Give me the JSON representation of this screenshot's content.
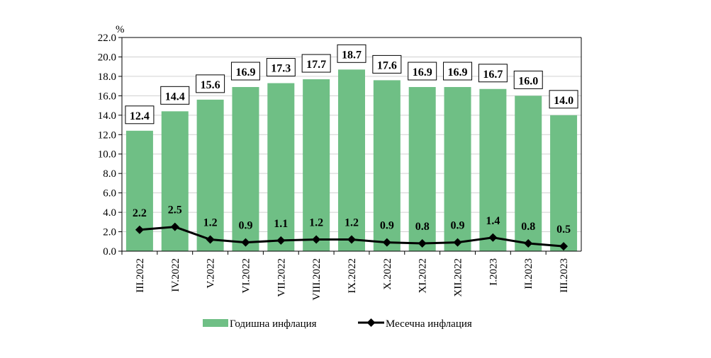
{
  "chart_data": {
    "type": "bar",
    "title": "",
    "ylabel": "%",
    "xlabel": "",
    "ylim": [
      0,
      22
    ],
    "yticks": [
      "0.0",
      "2.0",
      "4.0",
      "6.0",
      "8.0",
      "10.0",
      "12.0",
      "14.0",
      "16.0",
      "18.0",
      "20.0",
      "22.0"
    ],
    "grid": true,
    "legend_position": "bottom",
    "categories": [
      "III.2022",
      "IV.2022",
      "V.2022",
      "VI.2022",
      "VII.2022",
      "VIII.2022",
      "IX.2022",
      "X.2022",
      "XI.2022",
      "XII.2022",
      "I.2023",
      "II.2023",
      "III.2023"
    ],
    "series": [
      {
        "name": "Годишна инфлация",
        "type": "bar",
        "color": "#6fbf85",
        "values": [
          12.4,
          14.4,
          15.6,
          16.9,
          17.3,
          17.7,
          18.7,
          17.6,
          16.9,
          16.9,
          16.7,
          16.0,
          14.0
        ],
        "labels": [
          "12.4",
          "14.4",
          "15.6",
          "16.9",
          "17.3",
          "17.7",
          "18.7",
          "17.6",
          "16.9",
          "16.9",
          "16.7",
          "16.0",
          "14.0"
        ]
      },
      {
        "name": "Месечна инфлация",
        "type": "line",
        "color": "#000000",
        "values": [
          2.2,
          2.5,
          1.2,
          0.9,
          1.1,
          1.2,
          1.2,
          0.9,
          0.8,
          0.9,
          1.4,
          0.8,
          0.5
        ],
        "labels": [
          "2.2",
          "2.5",
          "1.2",
          "0.9",
          "1.1",
          "1.2",
          "1.2",
          "0.9",
          "0.8",
          "0.9",
          "1.4",
          "0.8",
          "0.5"
        ]
      }
    ]
  }
}
